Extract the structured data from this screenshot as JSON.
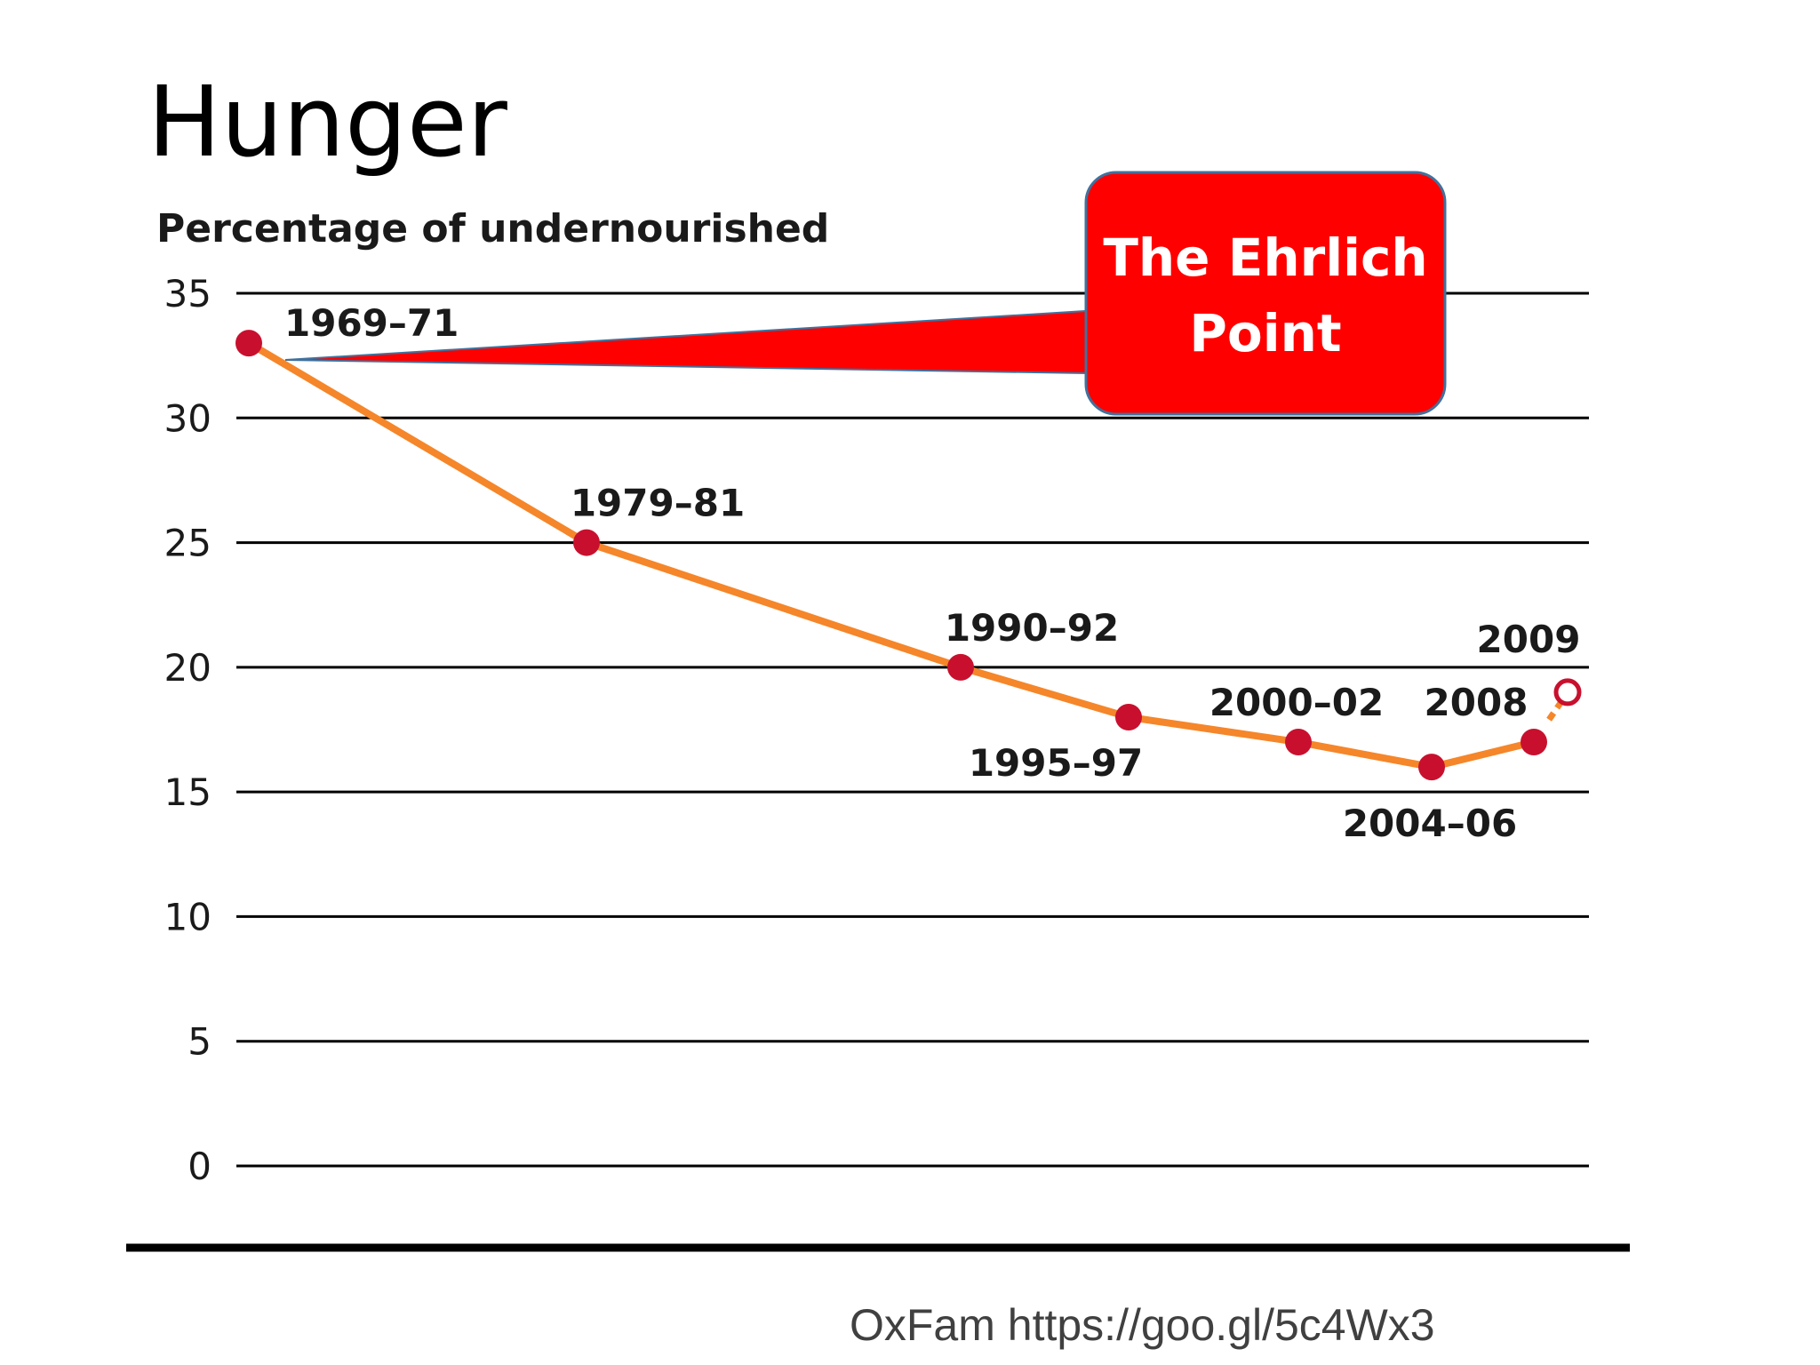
{
  "slide": {
    "title": "Hunger",
    "source": "OxFam https://goo.gl/5c4Wx3"
  },
  "callout": {
    "line1": "The Ehrlich",
    "line2": "Point",
    "fill_color": "#ff0000",
    "border_color": "#41719c"
  },
  "chart_data": {
    "type": "line",
    "ylabel": "Percentage of undernourished",
    "ylim": [
      0,
      35
    ],
    "yticks": [
      0,
      5,
      10,
      15,
      20,
      25,
      30,
      35
    ],
    "grid": true,
    "line_color": "#f5862a",
    "marker_color": "#c8102e",
    "points": [
      {
        "label": "1969–71",
        "value": 33
      },
      {
        "label": "1979–81",
        "value": 25
      },
      {
        "label": "1990–92",
        "value": 20
      },
      {
        "label": "1995–97",
        "value": 18
      },
      {
        "label": "2000–02",
        "value": 17
      },
      {
        "label": "2004–06",
        "value": 16
      },
      {
        "label": "2008",
        "value": 17
      },
      {
        "label": "2009",
        "value": 19,
        "projected": true
      }
    ]
  }
}
